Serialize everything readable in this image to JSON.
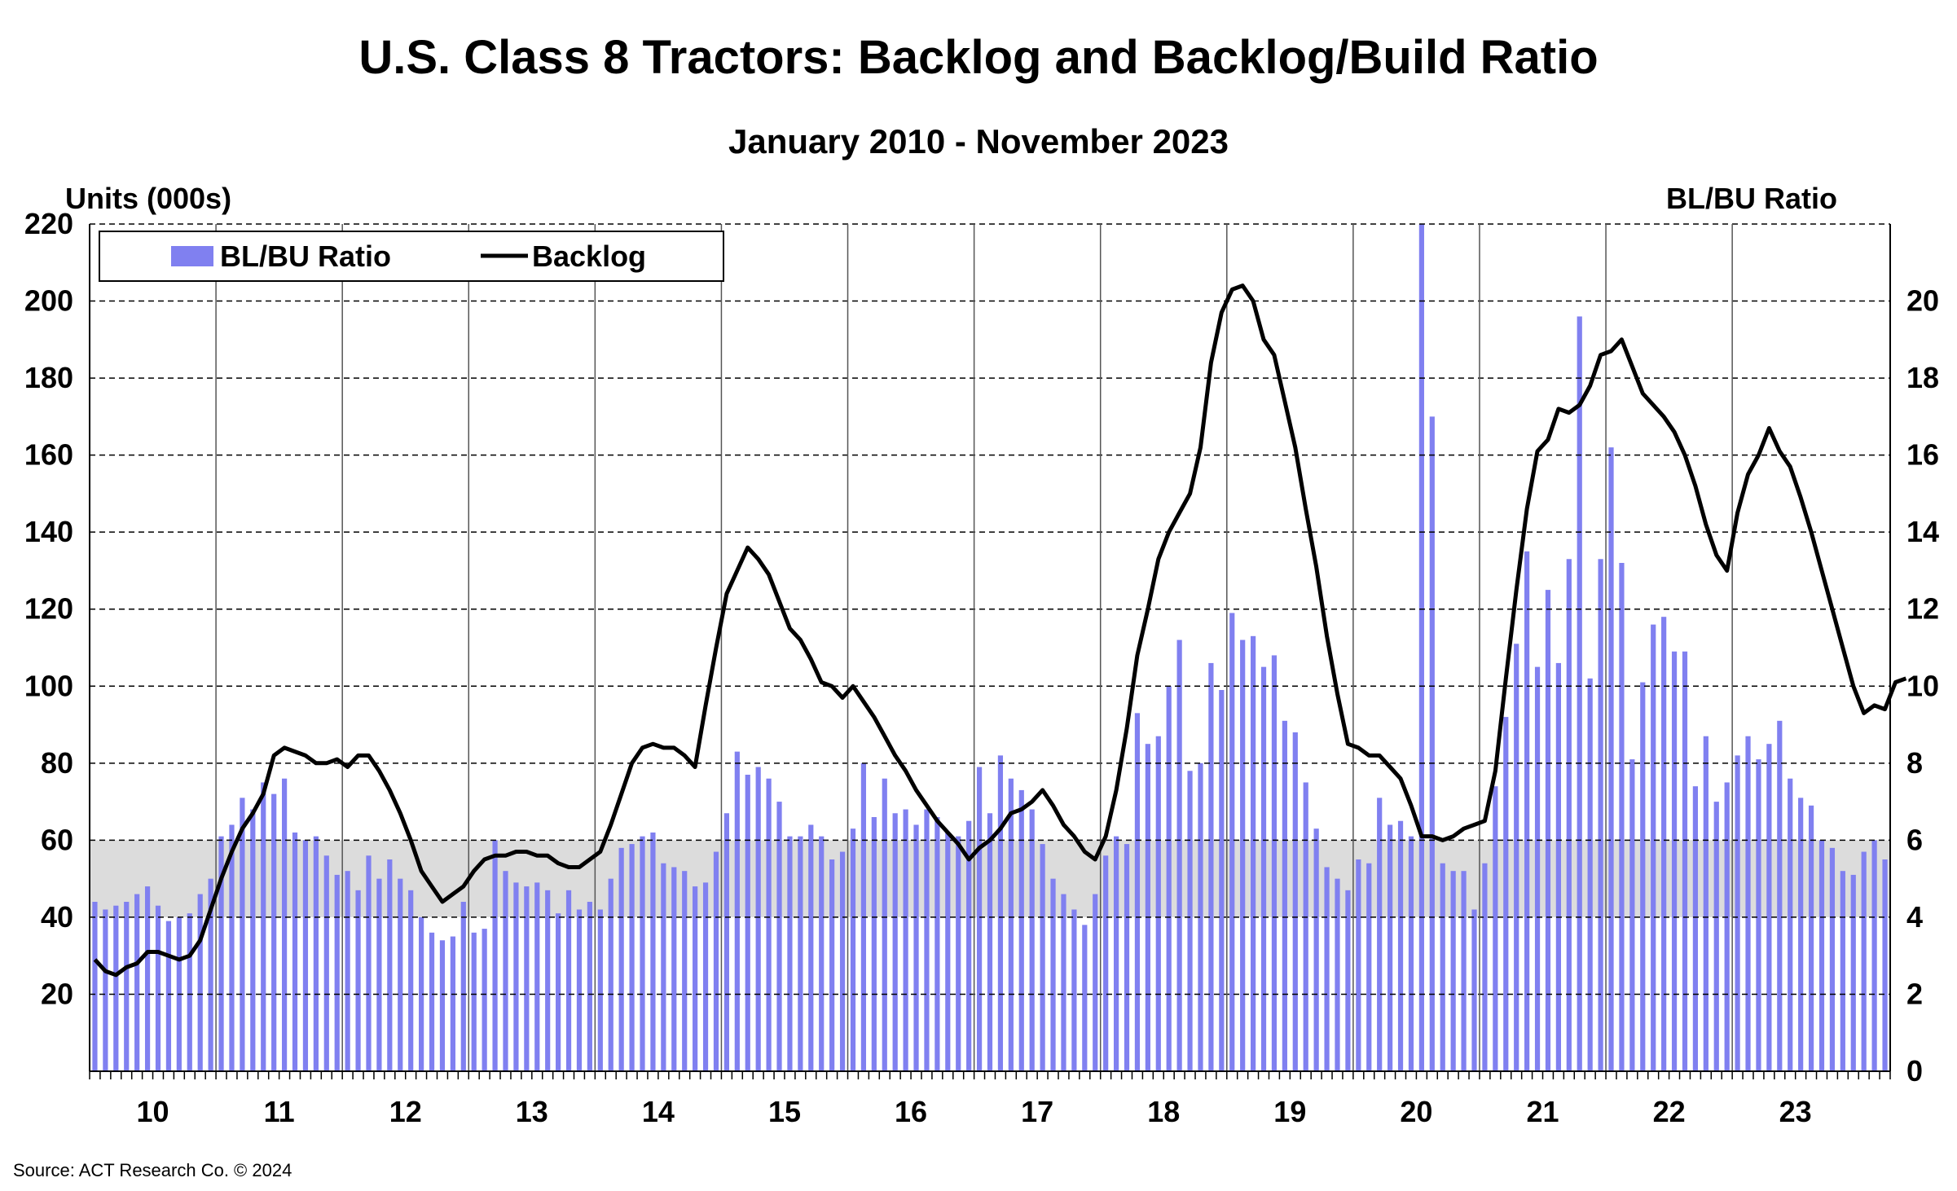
{
  "chart_data": {
    "type": "bar",
    "title": "U.S. Class 8 Tractors: Backlog and Backlog/Build Ratio",
    "subtitle": "January 2010 - November 2023",
    "ylabel_left": "Units (000s)",
    "ylabel_right": "BL/BU Ratio",
    "source": "Source: ACT Research Co. © 2024",
    "ylim_left": [
      0,
      220
    ],
    "ylim_right": [
      0,
      22
    ],
    "yticks_left": [
      "20",
      "40",
      "60",
      "80",
      "100",
      "120",
      "140",
      "160",
      "180",
      "200",
      "220"
    ],
    "yticks_right": [
      "0",
      "2",
      "4",
      "6",
      "8",
      "10",
      "12",
      "14",
      "16",
      "18",
      "20"
    ],
    "x_year_labels": [
      "10",
      "11",
      "12",
      "13",
      "14",
      "15",
      "16",
      "17",
      "18",
      "19",
      "20",
      "21",
      "22",
      "23"
    ],
    "shaded_band_ratio": [
      4,
      6
    ],
    "grid": true,
    "legend_position": "top-left",
    "series": [
      {
        "name": "BL/BU Ratio",
        "type": "bar",
        "axis": "right",
        "color": "#8080f0",
        "values": [
          4.4,
          4.2,
          4.3,
          4.4,
          4.6,
          4.8,
          4.3,
          3.9,
          4.0,
          4.1,
          4.6,
          5.0,
          6.1,
          6.4,
          7.1,
          6.8,
          7.5,
          7.2,
          7.6,
          6.2,
          6.0,
          6.1,
          5.6,
          5.1,
          5.2,
          4.7,
          5.6,
          5.0,
          5.5,
          5.0,
          4.7,
          4.0,
          3.6,
          3.4,
          3.5,
          4.4,
          3.6,
          3.7,
          6.0,
          5.2,
          4.9,
          4.8,
          4.9,
          4.7,
          4.1,
          4.7,
          4.2,
          4.4,
          4.2,
          5.0,
          5.8,
          5.9,
          6.1,
          6.2,
          5.4,
          5.3,
          5.2,
          4.8,
          4.9,
          5.7,
          6.7,
          8.3,
          7.7,
          7.9,
          7.6,
          7.0,
          6.1,
          6.1,
          6.4,
          6.1,
          5.5,
          5.7,
          6.3,
          8.0,
          6.6,
          7.6,
          6.7,
          6.8,
          6.4,
          6.8,
          6.6,
          6.2,
          6.1,
          6.5,
          7.9,
          6.7,
          8.2,
          7.6,
          7.3,
          6.8,
          5.9,
          5.0,
          4.6,
          4.2,
          3.8,
          4.6,
          5.6,
          6.1,
          5.9,
          9.3,
          8.5,
          8.7,
          10.0,
          11.2,
          7.8,
          8.0,
          10.6,
          9.9,
          11.9,
          11.2,
          11.3,
          10.5,
          10.8,
          9.1,
          8.8,
          7.5,
          6.3,
          5.3,
          5.0,
          4.7,
          5.5,
          5.4,
          7.1,
          6.4,
          6.5,
          6.1,
          22.0,
          17.0,
          5.4,
          5.2,
          5.2,
          4.2,
          5.4,
          7.4,
          9.2,
          11.1,
          13.5,
          10.5,
          12.5,
          10.6,
          13.3,
          19.6,
          10.2,
          13.3,
          16.2,
          13.2,
          8.1,
          10.1,
          11.6,
          11.8,
          10.9,
          10.9,
          7.4,
          8.7,
          7.0,
          7.5,
          8.2,
          8.7,
          8.1,
          8.5,
          9.1,
          7.6,
          7.1,
          6.9,
          6.0,
          5.8,
          5.2,
          5.1,
          5.7,
          6.0,
          5.5
        ]
      },
      {
        "name": "Backlog",
        "type": "line",
        "axis": "left",
        "color": "#000000",
        "values": [
          29,
          26,
          25,
          27,
          28,
          31,
          31,
          30,
          29,
          30,
          34,
          42,
          50,
          57,
          63,
          67,
          72,
          82,
          84,
          83,
          82,
          80,
          80,
          81,
          79,
          82,
          82,
          78,
          73,
          67,
          60,
          52,
          48,
          44,
          46,
          48,
          52,
          55,
          56,
          56,
          57,
          57,
          56,
          56,
          54,
          53,
          53,
          55,
          57,
          64,
          72,
          80,
          84,
          85,
          84,
          84,
          82,
          79,
          95,
          110,
          124,
          130,
          136,
          133,
          129,
          122,
          115,
          112,
          107,
          101,
          100,
          97,
          100,
          96,
          92,
          87,
          82,
          78,
          73,
          69,
          65,
          62,
          59,
          55,
          58,
          60,
          63,
          67,
          68,
          70,
          73,
          69,
          64,
          61,
          57,
          55,
          61,
          73,
          89,
          108,
          120,
          133,
          140,
          145,
          150,
          162,
          184,
          197,
          203,
          204,
          200,
          190,
          186,
          174,
          162,
          146,
          131,
          113,
          98,
          85,
          84,
          82,
          82,
          79,
          76,
          69,
          61,
          61,
          60,
          61,
          63,
          64,
          65,
          78,
          102,
          125,
          146,
          161,
          164,
          172,
          171,
          173,
          178,
          186,
          187,
          190,
          183,
          176,
          173,
          170,
          166,
          160,
          152,
          142,
          134,
          130,
          145,
          155,
          160,
          167,
          161,
          157,
          149,
          140,
          130,
          120,
          110,
          100,
          93,
          95,
          94,
          101,
          102
        ]
      }
    ]
  }
}
